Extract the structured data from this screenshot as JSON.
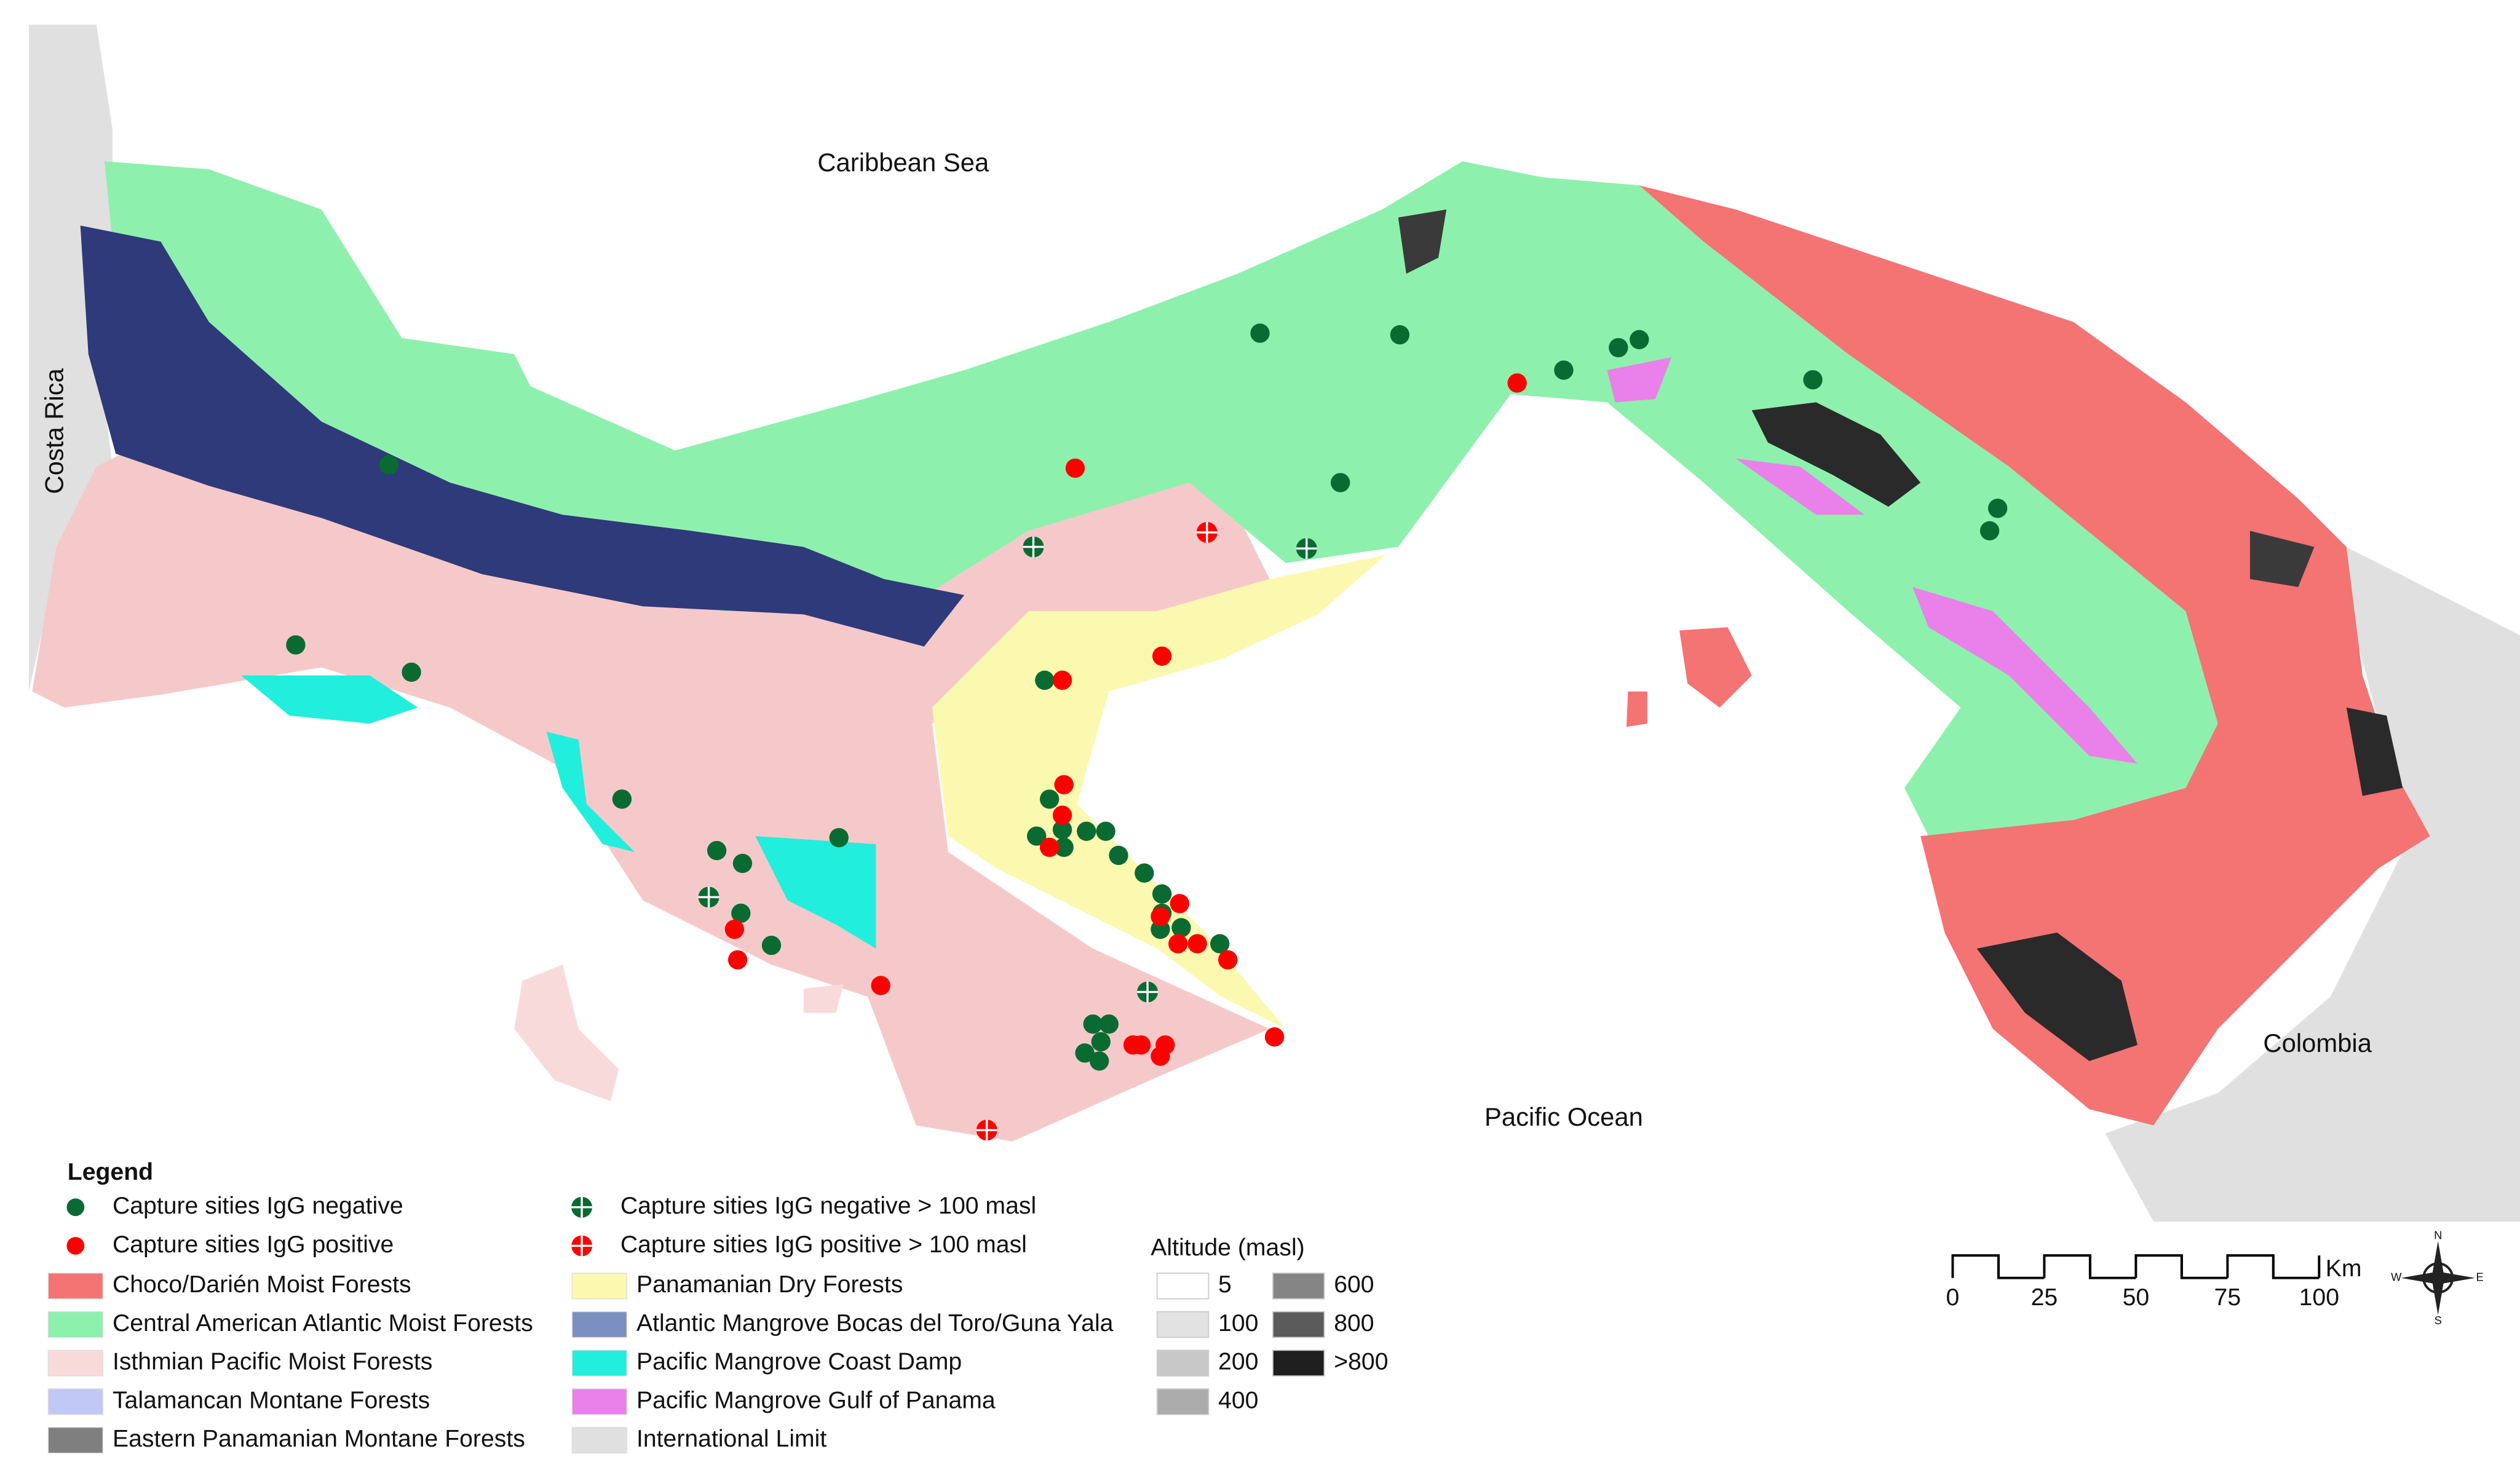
{
  "map": {
    "labels": {
      "caribbean": "Caribbean Sea",
      "pacific": "Pacific Ocean",
      "costa_rica": "Costa Rica",
      "colombia": "Colombia"
    }
  },
  "legend": {
    "title": "Legend",
    "sites": [
      "Capture sities IgG negative",
      "Capture sities IgG positive",
      "Capture sities IgG negative > 100 masl",
      "Capture sities IgG positive > 100 masl"
    ],
    "ecoregions": [
      {
        "label": "Choco/Darién Moist Forests",
        "color": "#f47373"
      },
      {
        "label": "Central American Atlantic Moist Forests",
        "color": "#8ef0ad"
      },
      {
        "label": "Isthmian Pacific Moist Forests",
        "color": "#f9dada"
      },
      {
        "label": "Talamancan Montane Forests",
        "color": "#c0c8f5"
      },
      {
        "label": "Eastern Panamanian Montane Forests",
        "color": "#7f7f7f"
      },
      {
        "label": "Panamanian Dry Forests",
        "color": "#fbf9b0"
      },
      {
        "label": "Atlantic Mangrove Bocas del Toro/Guna Yala",
        "color": "#7b90c0"
      },
      {
        "label": "Pacific Mangrove Coast Damp",
        "color": "#22eedd"
      },
      {
        "label": "Pacific Mangrove Gulf of Panama",
        "color": "#ea80ea"
      },
      {
        "label": "International Limit",
        "color": "#e0e0e0"
      }
    ],
    "altitude": {
      "title": "Altitude (masl)",
      "levels": [
        {
          "label": "5",
          "color": "#ffffff"
        },
        {
          "label": "100",
          "color": "#e2e2e2"
        },
        {
          "label": "200",
          "color": "#c8c8c8"
        },
        {
          "label": "400",
          "color": "#acacac"
        },
        {
          "label": "600",
          "color": "#858585"
        },
        {
          "label": "800",
          "color": "#5b5b5b"
        },
        {
          "label": ">800",
          "color": "#1f1f1f"
        }
      ]
    }
  },
  "scale_bar": {
    "ticks": [
      0,
      25,
      50,
      75,
      100
    ],
    "unit": "Km"
  },
  "compass": [
    "N",
    "E",
    "S",
    "W"
  ]
}
